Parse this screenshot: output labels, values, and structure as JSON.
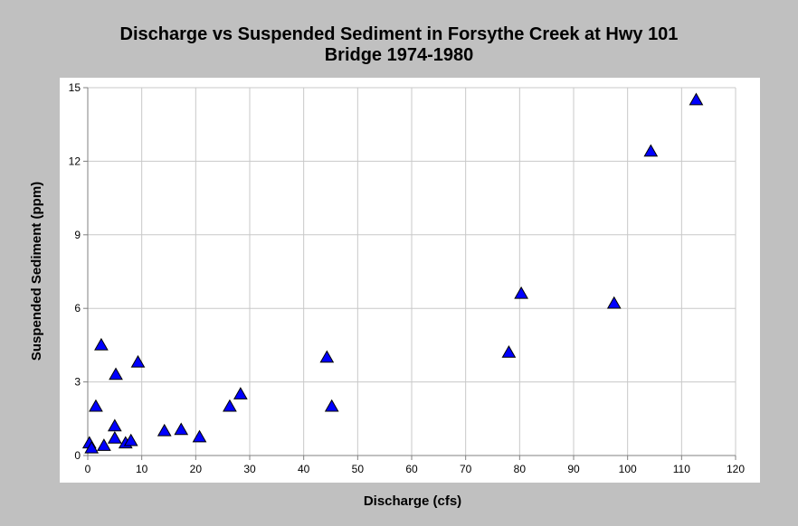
{
  "chart_data": {
    "type": "scatter",
    "title_line1": "Discharge vs Suspended Sediment in Forsythe Creek at Hwy 101",
    "title_line2": "Bridge 1974-1980",
    "xlabel": "Discharge (cfs)",
    "ylabel": "Suspended Sediment (ppm)",
    "xlim": [
      0,
      120
    ],
    "ylim": [
      0,
      15
    ],
    "xticks": [
      0,
      10,
      20,
      30,
      40,
      50,
      60,
      70,
      80,
      90,
      100,
      110,
      120
    ],
    "yticks": [
      0,
      3,
      6,
      9,
      12,
      15
    ],
    "grid": true,
    "marker_color": "#0000ff",
    "marker_shape": "triangle",
    "points": [
      {
        "x": 0.3,
        "y": 0.5
      },
      {
        "x": 0.7,
        "y": 0.3
      },
      {
        "x": 1.5,
        "y": 2.0
      },
      {
        "x": 2.5,
        "y": 4.5
      },
      {
        "x": 3.0,
        "y": 0.4
      },
      {
        "x": 5.0,
        "y": 1.2
      },
      {
        "x": 5.0,
        "y": 0.7
      },
      {
        "x": 5.2,
        "y": 3.3
      },
      {
        "x": 7.0,
        "y": 0.5
      },
      {
        "x": 8.0,
        "y": 0.6
      },
      {
        "x": 9.3,
        "y": 3.8
      },
      {
        "x": 14.2,
        "y": 1.0
      },
      {
        "x": 17.3,
        "y": 1.05
      },
      {
        "x": 20.7,
        "y": 0.75
      },
      {
        "x": 26.3,
        "y": 2.0
      },
      {
        "x": 28.3,
        "y": 2.5
      },
      {
        "x": 44.3,
        "y": 4.0
      },
      {
        "x": 45.2,
        "y": 2.0
      },
      {
        "x": 78.0,
        "y": 4.2
      },
      {
        "x": 80.3,
        "y": 6.6
      },
      {
        "x": 97.5,
        "y": 6.2
      },
      {
        "x": 104.3,
        "y": 12.4
      },
      {
        "x": 112.7,
        "y": 14.5
      }
    ]
  }
}
